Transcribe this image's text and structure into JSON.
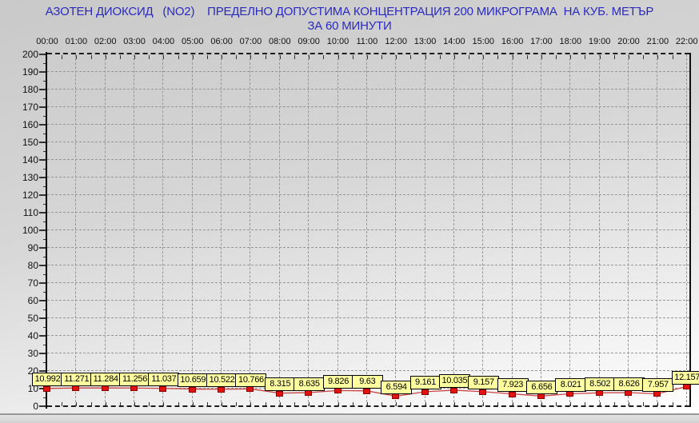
{
  "title": {
    "line1": "АЗОТЕН ДИОКСИД   (NO2)    ПРЕДЕЛНО ДОПУСТИМА КОНЦЕНТРАЦИЯ 200 МИКРОГРАМА  НА КУБ. МЕТЪР",
    "line2": "ЗА 60 МИНУТИ",
    "color": "#2a2ac0"
  },
  "chart_data": {
    "type": "line",
    "x_labels": [
      "00:00",
      "01:00",
      "02:00",
      "03:00",
      "04:00",
      "05:00",
      "06:00",
      "07:00",
      "08:00",
      "09:00",
      "10:00",
      "11:00",
      "12:00",
      "13:00",
      "14:00",
      "15:00",
      "16:00",
      "17:00",
      "18:00",
      "19:00",
      "20:00",
      "21:00",
      "22:00"
    ],
    "series": [
      {
        "name": "NO2",
        "values": [
          10.992,
          11.271,
          11.284,
          11.256,
          11.037,
          10.659,
          10.522,
          10.766,
          8.315,
          8.635,
          9.826,
          9.63,
          6.594,
          9.161,
          10.035,
          9.157,
          7.923,
          6.656,
          8.021,
          8.502,
          8.626,
          7.957,
          12.157
        ]
      }
    ],
    "point_labels": [
      "10.992",
      "11.271",
      "11.284",
      "11.256",
      "11.037",
      "10.659",
      "10.522",
      "10.766",
      "8.315",
      "8.635",
      "9.826",
      "9.63",
      "6.594",
      "9.161",
      "10.035",
      "9.157",
      "7.923",
      "6.656",
      "8.021",
      "8.502",
      "8.626",
      "7.957",
      "12.157"
    ],
    "y_ticks": [
      0,
      10,
      20,
      30,
      40,
      50,
      60,
      70,
      80,
      90,
      100,
      110,
      120,
      130,
      140,
      150,
      160,
      170,
      180,
      190,
      200
    ],
    "ylim": [
      0,
      200
    ],
    "limit_value": 200,
    "grid": true,
    "legend_position": "none",
    "colors": {
      "line": "#cc4444",
      "marker": "#e01212",
      "marker_border": "#8b0000",
      "point_label_bg": "#ffffa0",
      "title_text": "#2a2ac0",
      "grid_line": "#979797"
    }
  }
}
